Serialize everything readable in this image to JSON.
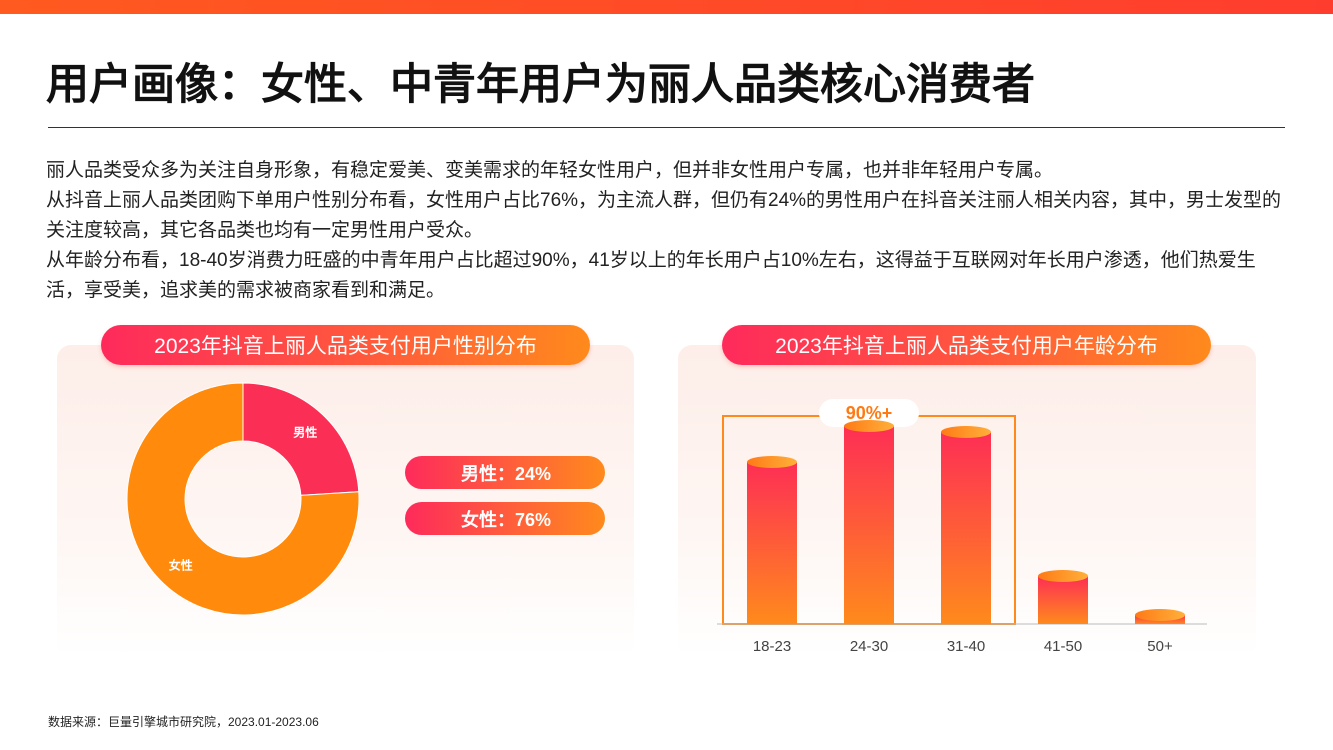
{
  "page": {
    "title": "用户画像：女性、中青年用户为丽人品类核心消费者",
    "paragraphs": [
      "丽人品类受众多为关注自身形象，有稳定爱美、变美需求的年轻女性用户，但并非女性用户专属，也并非年轻用户专属。",
      "从抖音上丽人品类团购下单用户性别分布看，女性用户占比76%，为主流人群，但仍有24%的男性用户在抖音关注丽人相关内容，其中，男士发型的关注度较高，其它各品类也均有一定男性用户受众。",
      "从年龄分布看，18-40岁消费力旺盛的中青年用户占比超过90%，41岁以上的年长用户占10%左右，这得益于互联网对年长用户渗透，他们热爱生活，享受美，追求美的需求被商家看到和满足。"
    ],
    "source": "数据来源：巨量引擎城市研究院，2023.01-2023.06"
  },
  "colors": {
    "accent_orange": "#ff8a1c",
    "accent_red": "#fe2a5b",
    "male_slice": "#fb2f55",
    "female_slice": "#ff8a0c"
  },
  "chart_data": [
    {
      "type": "pie",
      "title": "2023年抖音上丽人品类支付用户性别分布",
      "categories": [
        "男性",
        "女性"
      ],
      "values": [
        24,
        76
      ],
      "slice_labels": [
        "男性",
        "女性"
      ],
      "legend": [
        "男性：24%",
        "女性：76%"
      ],
      "legend_placement": "right"
    },
    {
      "type": "bar",
      "title": "2023年抖音上丽人品类支付用户年龄分布",
      "categories": [
        "18-23",
        "24-30",
        "31-40",
        "41-50",
        "50+"
      ],
      "values": [
        27,
        33,
        32,
        8,
        1.5
      ],
      "annotation": "90%+",
      "annotation_groups": [
        "18-23",
        "24-30",
        "31-40"
      ],
      "ylim": [
        0,
        38
      ],
      "grid": false
    }
  ]
}
